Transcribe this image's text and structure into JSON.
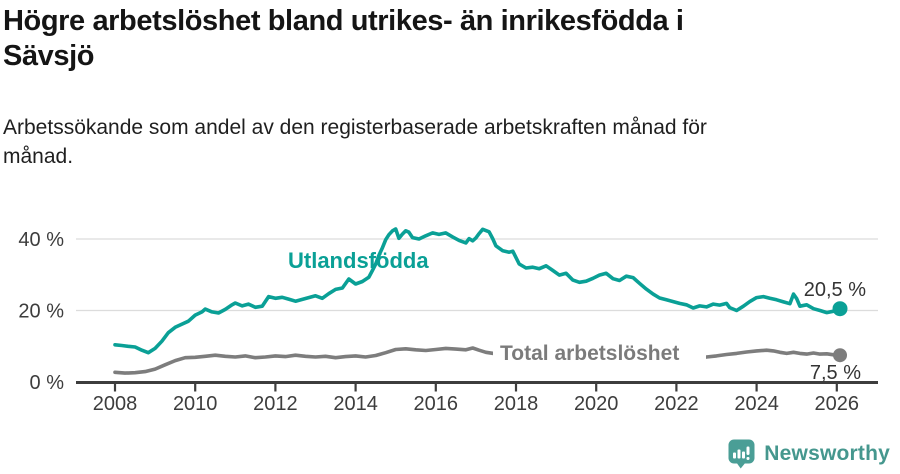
{
  "header": {
    "title_line1": "Högre arbetslöshet bland utrikes- än inrikesfödda i",
    "title_line2": "Sävsjö",
    "subtitle_line1": "Arbetssökande som andel av den registerbaserade arbetskraften månad för",
    "subtitle_line2": "månad."
  },
  "footer": {
    "brand": "Newsworthy",
    "brand_color": "#45978e"
  },
  "chart_data": {
    "type": "line",
    "title": "Högre arbetslöshet bland utrikes- än inrikesfödda i Sävsjö",
    "subtitle": "Arbetssökande som andel av den registerbaserade arbetskraften månad för månad.",
    "xlabel": "",
    "ylabel": "",
    "x_range": [
      2008,
      2026.3
    ],
    "ylim": [
      0,
      45
    ],
    "grid": "horizontal",
    "legend_position": "inline-labels",
    "x_ticks": [
      2008,
      2010,
      2012,
      2014,
      2016,
      2018,
      2020,
      2022,
      2024,
      2026
    ],
    "y_ticks": [
      {
        "value": 0,
        "label": "0 %"
      },
      {
        "value": 20,
        "label": "20 %"
      },
      {
        "value": 40,
        "label": "40 %"
      }
    ],
    "style": {
      "grid_color": "#dcdcdc",
      "axis_color": "#3d3d3d",
      "value_label_color": "#333333"
    },
    "series": [
      {
        "id": "utlandsfodda",
        "name": "Utlandsfödda",
        "color": "#0aa096",
        "end_label": "20,5 %",
        "end_value": 20.5,
        "points": [
          [
            2008,
            10.4
          ],
          [
            2008.17,
            10.2
          ],
          [
            2008.33,
            10
          ],
          [
            2008.5,
            9.8
          ],
          [
            2008.67,
            8.9
          ],
          [
            2008.83,
            8.2
          ],
          [
            2009,
            9.4
          ],
          [
            2009.17,
            11.4
          ],
          [
            2009.33,
            13.8
          ],
          [
            2009.5,
            15.3
          ],
          [
            2009.67,
            16.2
          ],
          [
            2009.83,
            17
          ],
          [
            2010,
            18.7
          ],
          [
            2010.17,
            19.6
          ],
          [
            2010.25,
            20.4
          ],
          [
            2010.42,
            19.6
          ],
          [
            2010.58,
            19.3
          ],
          [
            2010.75,
            20.3
          ],
          [
            2010.92,
            21.6
          ],
          [
            2011,
            22.1
          ],
          [
            2011.17,
            21.3
          ],
          [
            2011.33,
            21.8
          ],
          [
            2011.5,
            20.9
          ],
          [
            2011.67,
            21.2
          ],
          [
            2011.83,
            23.9
          ],
          [
            2012,
            23.4
          ],
          [
            2012.17,
            23.7
          ],
          [
            2012.33,
            23.2
          ],
          [
            2012.5,
            22.6
          ],
          [
            2012.67,
            23.1
          ],
          [
            2012.83,
            23.6
          ],
          [
            2013,
            24.1
          ],
          [
            2013.17,
            23.4
          ],
          [
            2013.33,
            24.7
          ],
          [
            2013.5,
            25.9
          ],
          [
            2013.67,
            26.3
          ],
          [
            2013.83,
            28.8
          ],
          [
            2014,
            27.4
          ],
          [
            2014.17,
            28.1
          ],
          [
            2014.33,
            29.3
          ],
          [
            2014.42,
            31.2
          ],
          [
            2014.5,
            33
          ],
          [
            2014.58,
            35.4
          ],
          [
            2014.67,
            37.6
          ],
          [
            2014.75,
            39.8
          ],
          [
            2014.83,
            41.2
          ],
          [
            2014.92,
            42.3
          ],
          [
            2015,
            42.8
          ],
          [
            2015.08,
            40.2
          ],
          [
            2015.17,
            41.4
          ],
          [
            2015.25,
            42.3
          ],
          [
            2015.33,
            41.9
          ],
          [
            2015.42,
            40.4
          ],
          [
            2015.58,
            40
          ],
          [
            2015.75,
            40.9
          ],
          [
            2015.92,
            41.7
          ],
          [
            2016.08,
            41.3
          ],
          [
            2016.25,
            41.7
          ],
          [
            2016.42,
            40.6
          ],
          [
            2016.58,
            39.6
          ],
          [
            2016.75,
            38.9
          ],
          [
            2016.83,
            40.1
          ],
          [
            2016.92,
            39.5
          ],
          [
            2017,
            40.3
          ],
          [
            2017.08,
            41.5
          ],
          [
            2017.17,
            42.7
          ],
          [
            2017.33,
            42
          ],
          [
            2017.42,
            40.1
          ],
          [
            2017.5,
            38.1
          ],
          [
            2017.67,
            36.7
          ],
          [
            2017.83,
            36.3
          ],
          [
            2017.92,
            36.6
          ],
          [
            2018.08,
            33
          ],
          [
            2018.25,
            31.9
          ],
          [
            2018.42,
            32.1
          ],
          [
            2018.58,
            31.7
          ],
          [
            2018.75,
            32.5
          ],
          [
            2018.92,
            31.2
          ],
          [
            2019.08,
            29.9
          ],
          [
            2019.25,
            30.4
          ],
          [
            2019.42,
            28.5
          ],
          [
            2019.58,
            27.9
          ],
          [
            2019.75,
            28.2
          ],
          [
            2019.92,
            29
          ],
          [
            2020.08,
            29.9
          ],
          [
            2020.25,
            30.4
          ],
          [
            2020.42,
            28.9
          ],
          [
            2020.58,
            28.4
          ],
          [
            2020.75,
            29.6
          ],
          [
            2020.92,
            29.2
          ],
          [
            2021.08,
            27.6
          ],
          [
            2021.25,
            26
          ],
          [
            2021.42,
            24.6
          ],
          [
            2021.58,
            23.5
          ],
          [
            2021.75,
            23
          ],
          [
            2021.92,
            22.5
          ],
          [
            2022.08,
            22
          ],
          [
            2022.25,
            21.6
          ],
          [
            2022.42,
            20.7
          ],
          [
            2022.58,
            21.3
          ],
          [
            2022.75,
            21
          ],
          [
            2022.92,
            21.8
          ],
          [
            2023.08,
            21.5
          ],
          [
            2023.25,
            22
          ],
          [
            2023.33,
            20.8
          ],
          [
            2023.5,
            20
          ],
          [
            2023.67,
            21.2
          ],
          [
            2023.83,
            22.5
          ],
          [
            2024,
            23.6
          ],
          [
            2024.17,
            23.9
          ],
          [
            2024.33,
            23.4
          ],
          [
            2024.5,
            23
          ],
          [
            2024.67,
            22.4
          ],
          [
            2024.83,
            21.9
          ],
          [
            2024.92,
            24.6
          ],
          [
            2025,
            23.3
          ],
          [
            2025.08,
            21.2
          ],
          [
            2025.25,
            21.6
          ],
          [
            2025.42,
            20.5
          ],
          [
            2025.58,
            20
          ],
          [
            2025.75,
            19.4
          ],
          [
            2025.92,
            19.8
          ],
          [
            2026.08,
            20.5
          ]
        ]
      },
      {
        "id": "total-arbetsloshet",
        "name": "Total arbetslöshet",
        "color": "#7d7d7d",
        "end_label": "7,5 %",
        "end_value": 7.5,
        "points": [
          [
            2008,
            2.7
          ],
          [
            2008.25,
            2.5
          ],
          [
            2008.5,
            2.6
          ],
          [
            2008.75,
            2.9
          ],
          [
            2009,
            3.6
          ],
          [
            2009.25,
            4.8
          ],
          [
            2009.5,
            6
          ],
          [
            2009.75,
            6.8
          ],
          [
            2010,
            6.9
          ],
          [
            2010.25,
            7.2
          ],
          [
            2010.5,
            7.5
          ],
          [
            2010.75,
            7.2
          ],
          [
            2011,
            7
          ],
          [
            2011.25,
            7.3
          ],
          [
            2011.5,
            6.8
          ],
          [
            2011.75,
            7
          ],
          [
            2012,
            7.3
          ],
          [
            2012.25,
            7.1
          ],
          [
            2012.5,
            7.5
          ],
          [
            2012.75,
            7.2
          ],
          [
            2013,
            7
          ],
          [
            2013.25,
            7.2
          ],
          [
            2013.5,
            6.8
          ],
          [
            2013.75,
            7.1
          ],
          [
            2014,
            7.3
          ],
          [
            2014.25,
            7
          ],
          [
            2014.5,
            7.4
          ],
          [
            2014.75,
            8.2
          ],
          [
            2015,
            9.1
          ],
          [
            2015.25,
            9.3
          ],
          [
            2015.5,
            9
          ],
          [
            2015.75,
            8.8
          ],
          [
            2016,
            9.1
          ],
          [
            2016.25,
            9.4
          ],
          [
            2016.5,
            9.2
          ],
          [
            2016.75,
            9
          ],
          [
            2016.92,
            9.5
          ],
          [
            2017.08,
            8.9
          ],
          [
            2017.25,
            8.3
          ],
          [
            2017.5,
            7.9
          ],
          [
            2017.75,
            7.6
          ],
          [
            2018,
            7.7
          ],
          [
            2018.25,
            7.5
          ],
          [
            2018.5,
            7.3
          ],
          [
            2018.75,
            7.4
          ],
          [
            2019,
            7.2
          ],
          [
            2019.25,
            7
          ],
          [
            2019.5,
            6.9
          ],
          [
            2019.75,
            7.1
          ],
          [
            2020,
            7.4
          ],
          [
            2020.25,
            8.3
          ],
          [
            2020.5,
            8.6
          ],
          [
            2020.75,
            8.3
          ],
          [
            2021,
            7.9
          ],
          [
            2021.25,
            7.5
          ],
          [
            2021.5,
            7.1
          ],
          [
            2021.75,
            6.8
          ],
          [
            2022,
            6.6
          ],
          [
            2022.25,
            6.4
          ],
          [
            2022.5,
            6.4
          ],
          [
            2022.75,
            7
          ],
          [
            2023,
            7.3
          ],
          [
            2023.25,
            7.7
          ],
          [
            2023.5,
            8
          ],
          [
            2023.75,
            8.4
          ],
          [
            2024,
            8.7
          ],
          [
            2024.25,
            8.9
          ],
          [
            2024.42,
            8.7
          ],
          [
            2024.58,
            8.3
          ],
          [
            2024.75,
            8
          ],
          [
            2024.92,
            8.3
          ],
          [
            2025.08,
            8
          ],
          [
            2025.25,
            7.8
          ],
          [
            2025.42,
            8.1
          ],
          [
            2025.58,
            7.8
          ],
          [
            2025.75,
            7.9
          ],
          [
            2025.92,
            7.6
          ],
          [
            2026.08,
            7.5
          ]
        ]
      }
    ]
  }
}
